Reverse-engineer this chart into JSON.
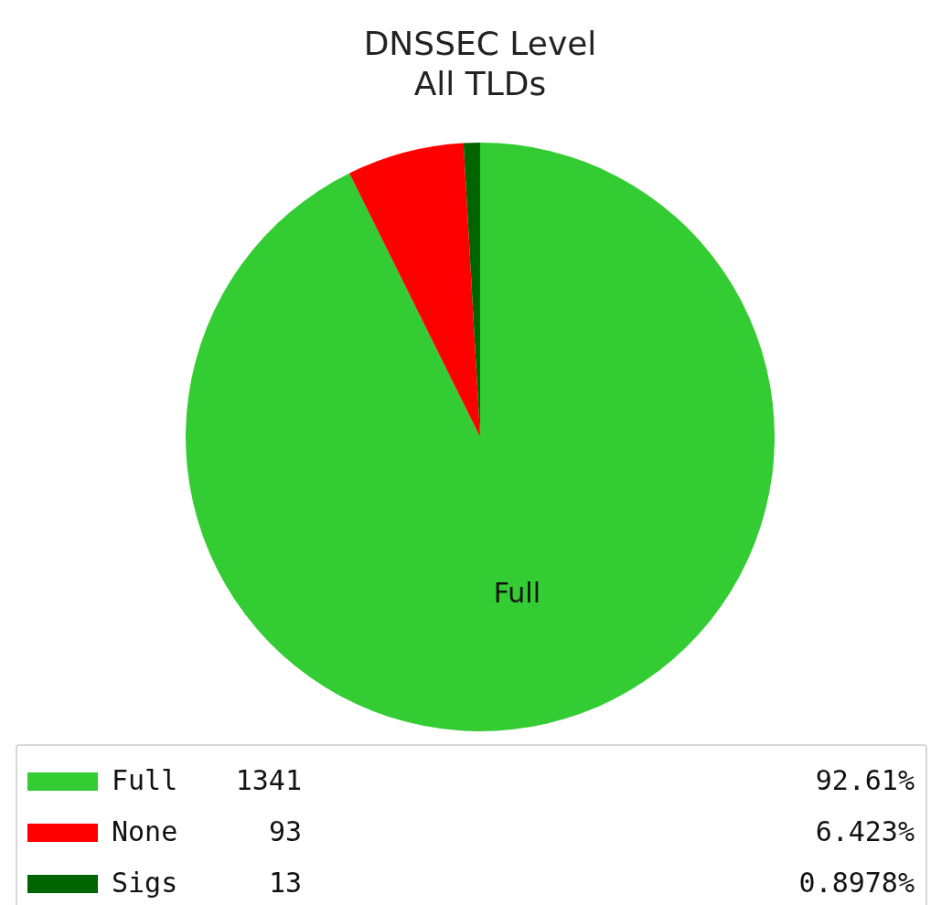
{
  "chart_data": {
    "type": "pie",
    "title": "DNSSEC Level\nAll TLDs",
    "categories": [
      "Full",
      "None",
      "Sigs"
    ],
    "values": [
      1341,
      93,
      13
    ],
    "colors": [
      "#33cc33",
      "#ff0000",
      "#006400"
    ],
    "data_labels": true,
    "annotations": [
      "92.61%",
      "6.423%",
      "0.8978%"
    ],
    "legend": "bottom"
  }
}
